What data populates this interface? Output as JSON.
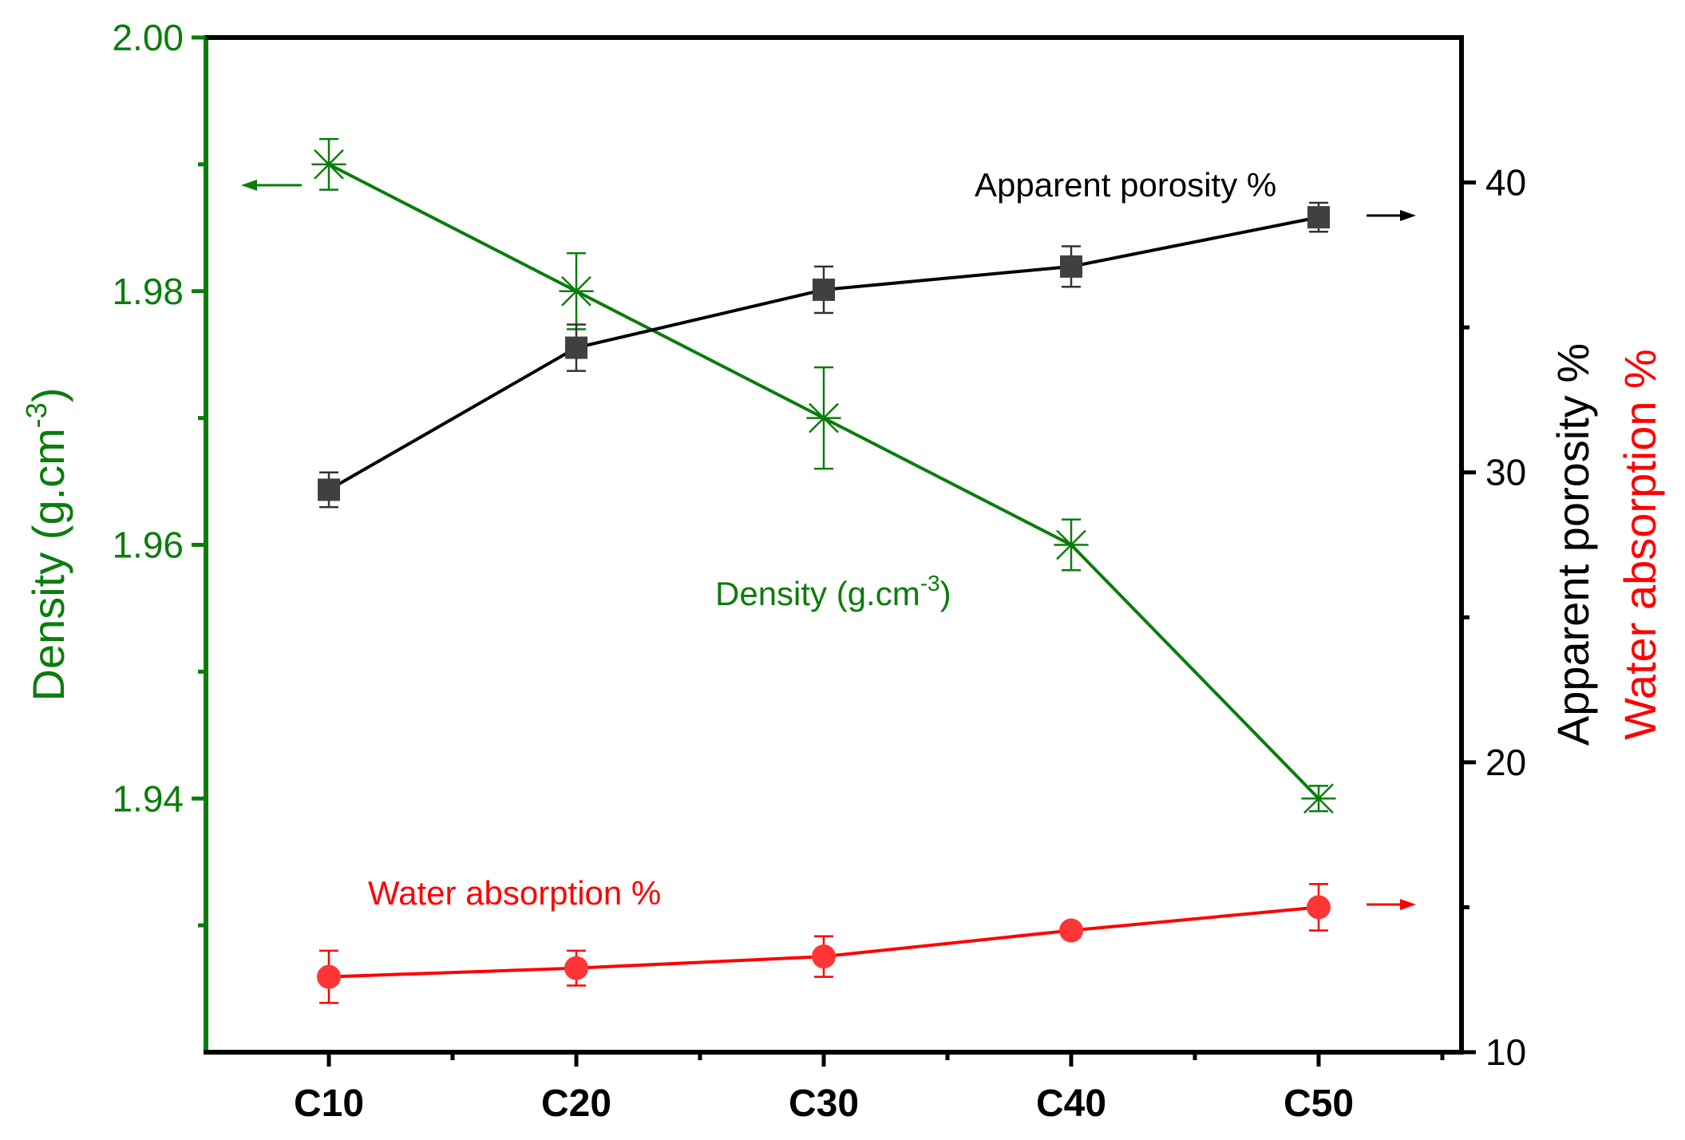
{
  "chart_data": {
    "type": "line",
    "categories": [
      "C10",
      "C20",
      "C30",
      "C40",
      "C50"
    ],
    "y_left": {
      "label": "Density (g.cm",
      "label_sup": "-3",
      "label_close": ")",
      "range": [
        1.92,
        2.0
      ],
      "ticks": [
        "1.94",
        "1.96",
        "1.98",
        "2.00"
      ],
      "color": "#0a7d0a"
    },
    "y_right": {
      "label_1": "Apparent porosity %",
      "label_2": "Water absorption %",
      "range": [
        10,
        45
      ],
      "ticks": [
        "10",
        "20",
        "30",
        "40"
      ],
      "color_1": "#000000",
      "color_2": "#ff0000"
    },
    "series": [
      {
        "name": "Density (g.cm-3)",
        "annotation": "Density (g.cm",
        "annotation_sup": "-3",
        "annotation_close": ")",
        "axis": "left",
        "marker": "star",
        "color": "#0a7d0a",
        "values": [
          1.99,
          1.98,
          1.97,
          1.96,
          1.94
        ],
        "errors": [
          0.002,
          0.003,
          0.004,
          0.002,
          0.001
        ]
      },
      {
        "name": "Apparent porosity %",
        "annotation": "Apparent porosity %",
        "axis": "right",
        "marker": "square",
        "color": "#000000",
        "values": [
          29.4,
          34.3,
          36.3,
          37.1,
          38.8
        ],
        "errors": [
          0.6,
          0.8,
          0.8,
          0.7,
          0.5
        ]
      },
      {
        "name": "Water absorption %",
        "annotation": "Water absorption %",
        "axis": "right",
        "marker": "circle",
        "color": "#ff0000",
        "values": [
          12.6,
          12.9,
          13.3,
          14.2,
          15.0
        ],
        "errors": [
          0.9,
          0.6,
          0.7,
          0.2,
          0.8
        ]
      }
    ]
  }
}
